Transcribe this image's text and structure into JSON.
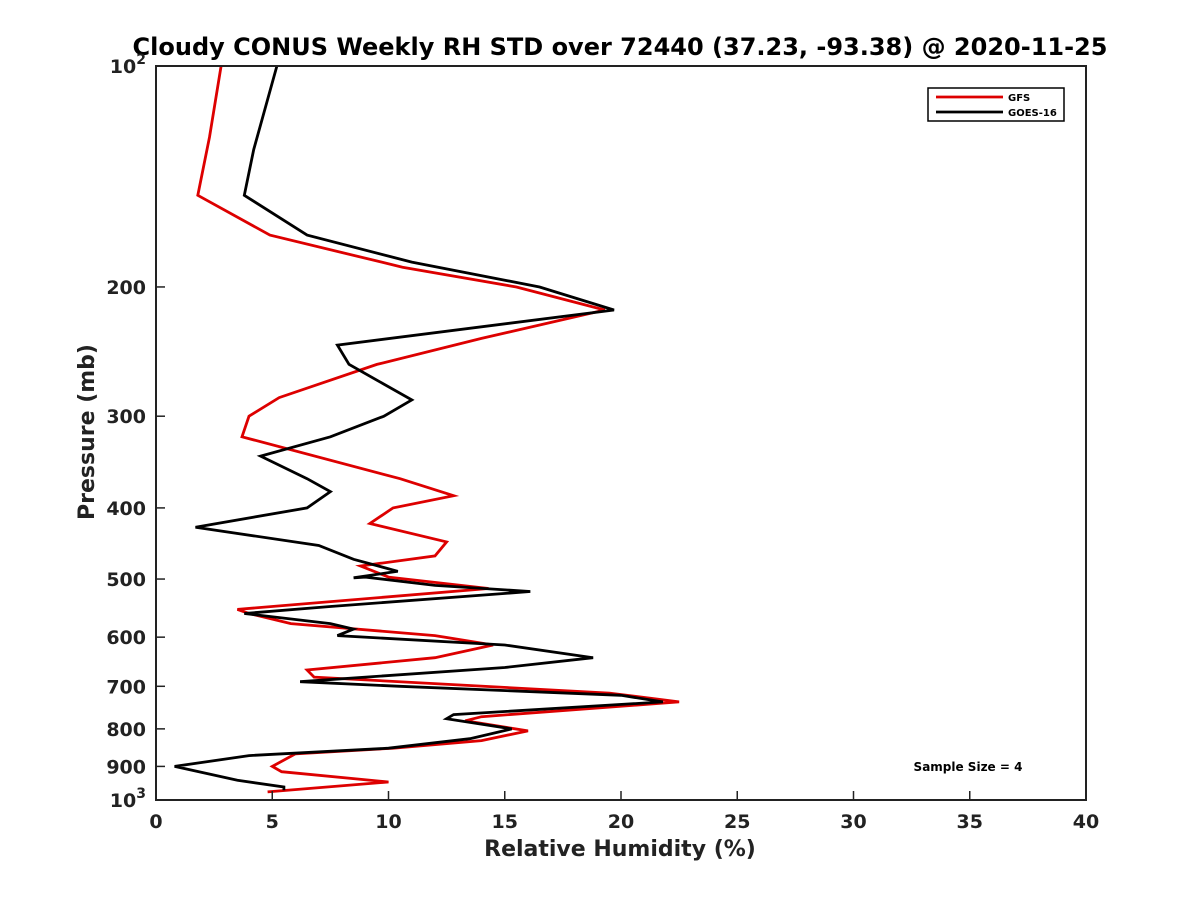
{
  "chart_data": {
    "type": "line",
    "title": "Cloudy CONUS Weekly RH STD over 72440 (37.23, -93.38) @ 2020-11-25",
    "xlabel": "Relative Humidity (%)",
    "ylabel": "Pressure (mb)",
    "xlim": [
      0,
      40
    ],
    "ylim": [
      100,
      1000
    ],
    "y_scale": "log",
    "y_reversed": true,
    "grid": false,
    "legend_position": "top-right",
    "annotation": "Sample Size = 4",
    "x_ticks": [
      {
        "v": 0,
        "label": "0"
      },
      {
        "v": 5,
        "label": "5"
      },
      {
        "v": 10,
        "label": "10"
      },
      {
        "v": 15,
        "label": "15"
      },
      {
        "v": 20,
        "label": "20"
      },
      {
        "v": 25,
        "label": "25"
      },
      {
        "v": 30,
        "label": "30"
      },
      {
        "v": 35,
        "label": "35"
      },
      {
        "v": 40,
        "label": "40"
      }
    ],
    "y_ticks": [
      {
        "v": 100,
        "base": "10",
        "exp": "2"
      },
      {
        "v": 200,
        "label": "200"
      },
      {
        "v": 300,
        "label": "300"
      },
      {
        "v": 400,
        "label": "400"
      },
      {
        "v": 500,
        "label": "500"
      },
      {
        "v": 600,
        "label": "600"
      },
      {
        "v": 700,
        "label": "700"
      },
      {
        "v": 800,
        "label": "800"
      },
      {
        "v": 900,
        "label": "900"
      },
      {
        "v": 1000,
        "base": "10",
        "exp": "3"
      }
    ],
    "series": [
      {
        "name": "GFS",
        "color": "#dd0000",
        "points": [
          [
            2.8,
            100
          ],
          [
            2.3,
            125
          ],
          [
            1.8,
            150
          ],
          [
            4.9,
            170
          ],
          [
            10.6,
            188
          ],
          [
            15.5,
            200
          ],
          [
            19.3,
            215
          ],
          [
            14.0,
            235
          ],
          [
            9.5,
            255
          ],
          [
            5.3,
            283
          ],
          [
            4.0,
            300
          ],
          [
            3.7,
            320
          ],
          [
            10.5,
            365
          ],
          [
            12.8,
            385
          ],
          [
            10.2,
            400
          ],
          [
            9.2,
            420
          ],
          [
            12.5,
            445
          ],
          [
            12.0,
            465
          ],
          [
            8.8,
            480
          ],
          [
            10.0,
            497
          ],
          [
            14.3,
            515
          ],
          [
            3.5,
            550
          ],
          [
            4.0,
            557
          ],
          [
            5.8,
            575
          ],
          [
            12.0,
            597
          ],
          [
            14.5,
            615
          ],
          [
            12.0,
            640
          ],
          [
            6.5,
            665
          ],
          [
            6.8,
            680
          ],
          [
            19.5,
            715
          ],
          [
            22.5,
            735
          ],
          [
            14.0,
            770
          ],
          [
            13.3,
            780
          ],
          [
            16.0,
            805
          ],
          [
            14.0,
            830
          ],
          [
            10.2,
            850
          ],
          [
            6.0,
            865
          ],
          [
            5.0,
            900
          ],
          [
            5.4,
            915
          ],
          [
            10.0,
            945
          ],
          [
            4.8,
            975
          ]
        ]
      },
      {
        "name": "GOES-16",
        "color": "#000000",
        "points": [
          [
            5.2,
            100
          ],
          [
            4.2,
            130
          ],
          [
            3.8,
            150
          ],
          [
            6.5,
            170
          ],
          [
            11.0,
            185
          ],
          [
            16.5,
            200
          ],
          [
            19.7,
            215
          ],
          [
            7.8,
            240
          ],
          [
            8.3,
            255
          ],
          [
            11.0,
            285
          ],
          [
            9.8,
            300
          ],
          [
            7.5,
            320
          ],
          [
            4.5,
            340
          ],
          [
            6.5,
            365
          ],
          [
            7.5,
            380
          ],
          [
            6.5,
            400
          ],
          [
            1.7,
            425
          ],
          [
            7.0,
            450
          ],
          [
            8.5,
            470
          ],
          [
            10.4,
            488
          ],
          [
            8.5,
            498
          ],
          [
            9.0,
            497
          ],
          [
            12.0,
            510
          ],
          [
            16.1,
            520
          ],
          [
            7.5,
            545
          ],
          [
            3.8,
            557
          ],
          [
            7.5,
            575
          ],
          [
            8.5,
            585
          ],
          [
            7.8,
            597
          ],
          [
            15.0,
            615
          ],
          [
            18.8,
            640
          ],
          [
            15.0,
            660
          ],
          [
            6.2,
            690
          ],
          [
            10.5,
            700
          ],
          [
            20.0,
            720
          ],
          [
            21.8,
            735
          ],
          [
            12.8,
            765
          ],
          [
            12.5,
            775
          ],
          [
            15.3,
            800
          ],
          [
            13.5,
            825
          ],
          [
            10.0,
            850
          ],
          [
            4.0,
            870
          ],
          [
            0.8,
            900
          ],
          [
            3.5,
            940
          ],
          [
            5.5,
            960
          ],
          [
            5.5,
            970
          ]
        ]
      }
    ]
  }
}
